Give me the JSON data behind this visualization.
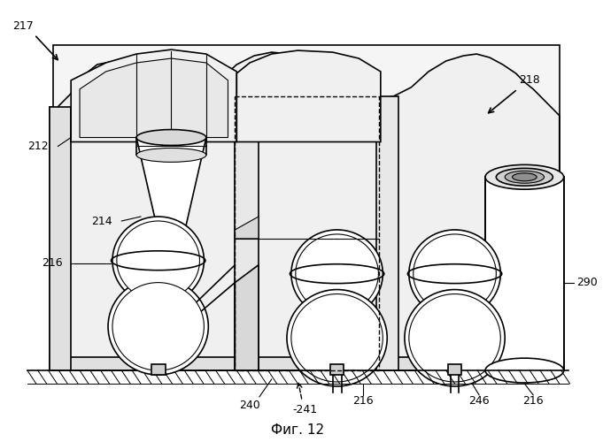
{
  "title": "Фиг. 12",
  "title_fontsize": 11,
  "background_color": "#ffffff",
  "line_color": "#000000",
  "figsize": [
    6.81,
    5.0
  ],
  "dpi": 100
}
